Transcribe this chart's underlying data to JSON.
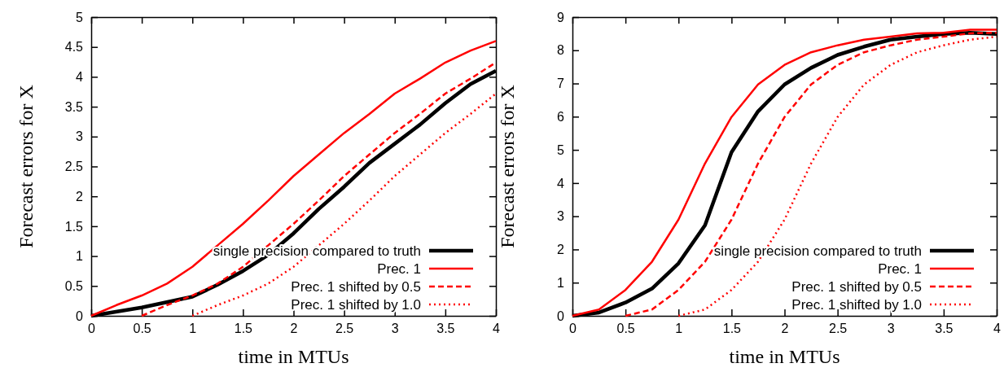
{
  "chart_data": [
    {
      "type": "line",
      "xlabel": "time in MTUs",
      "ylabel": "Forecast errors for X",
      "xlim": [
        0,
        4
      ],
      "ylim": [
        0,
        5
      ],
      "xticks": [
        0,
        0.5,
        1,
        1.5,
        2,
        2.5,
        3,
        3.5,
        4
      ],
      "yticks": [
        0,
        0.5,
        1,
        1.5,
        2,
        2.5,
        3,
        3.5,
        4,
        4.5,
        5
      ],
      "grid": false,
      "legend": "bottom right",
      "marker": "none",
      "series": [
        {
          "name": "single precision compared to truth",
          "color": "#000000",
          "line_style": "solid",
          "x": [
            0,
            0.5,
            1,
            1.25,
            1.5,
            1.75,
            2,
            2.25,
            2.5,
            2.75,
            3,
            3.25,
            3.5,
            3.75,
            4
          ],
          "values": [
            0,
            0.14,
            0.32,
            0.52,
            0.75,
            1.02,
            1.38,
            1.79,
            2.16,
            2.56,
            2.88,
            3.2,
            3.56,
            3.88,
            4.1
          ]
        },
        {
          "name": "Prec. 1",
          "color": "#ff0000",
          "line_style": "solid",
          "x": [
            0,
            0.25,
            0.5,
            0.75,
            1,
            1.25,
            1.5,
            1.75,
            2,
            2.25,
            2.5,
            2.75,
            3,
            3.25,
            3.5,
            3.75,
            4
          ],
          "values": [
            0,
            0.18,
            0.34,
            0.54,
            0.82,
            1.18,
            1.54,
            1.93,
            2.34,
            2.7,
            3.06,
            3.38,
            3.72,
            3.97,
            4.24,
            4.44,
            4.6
          ]
        },
        {
          "name": "Prec. 1 shifted by 0.5",
          "color": "#ff0000",
          "line_style": "dashed",
          "x": [
            0.5,
            0.75,
            1,
            1.25,
            1.5,
            1.75,
            2,
            2.25,
            2.5,
            2.75,
            3,
            3.25,
            3.5,
            3.75,
            4
          ],
          "values": [
            0,
            0.18,
            0.34,
            0.54,
            0.82,
            1.18,
            1.54,
            1.93,
            2.34,
            2.7,
            3.06,
            3.38,
            3.72,
            3.97,
            4.24
          ]
        },
        {
          "name": "Prec. 1 shifted by 1.0",
          "color": "#ff0000",
          "line_style": "dotted",
          "x": [
            1,
            1.25,
            1.5,
            1.75,
            2,
            2.25,
            2.5,
            2.75,
            3,
            3.25,
            3.5,
            3.75,
            4
          ],
          "values": [
            0,
            0.18,
            0.34,
            0.54,
            0.82,
            1.18,
            1.54,
            1.93,
            2.34,
            2.7,
            3.06,
            3.38,
            3.72
          ]
        }
      ]
    },
    {
      "type": "line",
      "xlabel": "time in MTUs",
      "ylabel": "Forecast errors for X",
      "xlim": [
        0,
        4
      ],
      "ylim": [
        0,
        9
      ],
      "xticks": [
        0,
        0.5,
        1,
        1.5,
        2,
        2.5,
        3,
        3.5,
        4
      ],
      "yticks": [
        0,
        1,
        2,
        3,
        4,
        5,
        6,
        7,
        8,
        9
      ],
      "grid": false,
      "legend": "bottom right",
      "marker": "none",
      "series": [
        {
          "name": "single precision compared to truth",
          "color": "#000000",
          "line_style": "solid",
          "x": [
            0,
            0.25,
            0.5,
            0.75,
            1,
            1.25,
            1.5,
            1.75,
            2,
            2.25,
            2.5,
            2.75,
            3,
            3.25,
            3.5,
            3.75,
            4
          ],
          "values": [
            0,
            0.1,
            0.4,
            0.82,
            1.58,
            2.73,
            4.93,
            6.16,
            6.97,
            7.47,
            7.86,
            8.11,
            8.32,
            8.41,
            8.49,
            8.53,
            8.49
          ]
        },
        {
          "name": "Prec. 1",
          "color": "#ff0000",
          "line_style": "solid",
          "x": [
            0,
            0.25,
            0.5,
            0.75,
            1,
            1.25,
            1.5,
            1.75,
            2,
            2.25,
            2.5,
            2.75,
            3,
            3.25,
            3.5,
            3.75,
            4
          ],
          "values": [
            0,
            0.19,
            0.78,
            1.63,
            2.9,
            4.59,
            5.99,
            6.97,
            7.56,
            7.94,
            8.15,
            8.32,
            8.41,
            8.51,
            8.53,
            8.62,
            8.62
          ]
        },
        {
          "name": "Prec. 1 shifted by 0.5",
          "color": "#ff0000",
          "line_style": "dashed",
          "x": [
            0.5,
            0.75,
            1,
            1.25,
            1.5,
            1.75,
            2,
            2.25,
            2.5,
            2.75,
            3,
            3.25,
            3.5,
            3.75,
            4
          ],
          "values": [
            0,
            0.19,
            0.78,
            1.63,
            2.9,
            4.59,
            5.99,
            6.97,
            7.56,
            7.94,
            8.15,
            8.32,
            8.41,
            8.51,
            8.53
          ]
        },
        {
          "name": "Prec. 1 shifted by 1.0",
          "color": "#ff0000",
          "line_style": "dotted",
          "x": [
            1,
            1.25,
            1.5,
            1.75,
            2,
            2.25,
            2.5,
            2.75,
            3,
            3.25,
            3.5,
            3.75,
            4
          ],
          "values": [
            0,
            0.19,
            0.78,
            1.63,
            2.9,
            4.59,
            5.99,
            6.97,
            7.56,
            7.94,
            8.15,
            8.32,
            8.41
          ]
        }
      ]
    }
  ]
}
